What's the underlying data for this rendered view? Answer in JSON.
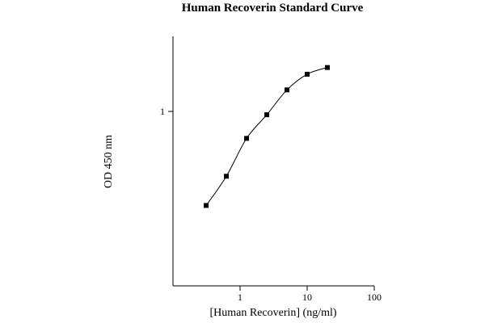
{
  "chart_data": {
    "type": "line",
    "title": "Human Recoverin Standard Curve",
    "xlabel": "[Human Recoverin] (ng/ml)",
    "ylabel": "OD 450 nm",
    "x_scale": "log",
    "y_scale": "log",
    "xlim": [
      0.1,
      100
    ],
    "ylim": [
      0.2,
      2.0
    ],
    "x_ticks": [
      {
        "value": 1,
        "label": "1"
      },
      {
        "value": 10,
        "label": "10"
      },
      {
        "value": 100,
        "label": "100"
      }
    ],
    "y_ticks": [
      {
        "value": 1,
        "label": "1"
      }
    ],
    "grid": false,
    "series": [
      {
        "x": [
          0.3125,
          0.625,
          1.25,
          2.5,
          5,
          10,
          20
        ],
        "y": [
          0.42,
          0.55,
          0.78,
          0.97,
          1.22,
          1.41,
          1.5
        ]
      }
    ],
    "colors": {
      "line": "#000000",
      "marker": "#000000",
      "axis": "#000000"
    }
  }
}
